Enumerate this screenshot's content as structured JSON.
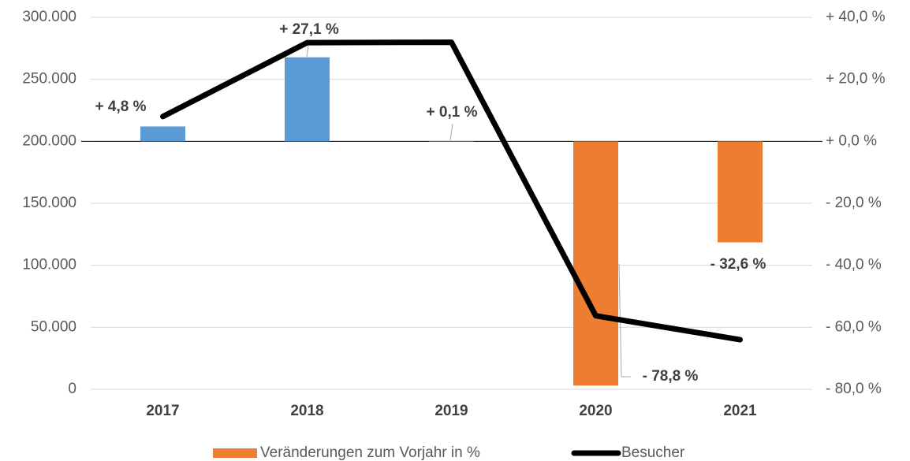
{
  "chart_data": {
    "type": "bar_line",
    "categories": [
      "2017",
      "2018",
      "2019",
      "2020",
      "2021"
    ],
    "series": [
      {
        "name": "Veränderungen zum Vorjahr in %",
        "type": "bar",
        "axis": "y2",
        "color": "#ed7d31",
        "colors": [
          "#5b9bd5",
          "#5b9bd5",
          "#5b9bd5",
          "#ed7d31",
          "#ed7d31"
        ],
        "values": [
          4.8,
          27.1,
          0.1,
          -78.8,
          -32.6
        ],
        "value_labels": [
          "+ 4,8 %",
          "+ 27,1 %",
          "+ 0,1 %",
          "- 78,8 %",
          "- 32,6 %"
        ]
      },
      {
        "name": "Besucher",
        "type": "line",
        "axis": "y",
        "color": "#000000",
        "values": [
          220000,
          279600,
          279900,
          59300,
          40000
        ]
      }
    ],
    "ylim": [
      0,
      300000
    ],
    "yticks": [
      {
        "value": 0,
        "label": "0"
      },
      {
        "value": 50000,
        "label": "50.000"
      },
      {
        "value": 100000,
        "label": "100.000"
      },
      {
        "value": 150000,
        "label": "150.000"
      },
      {
        "value": 200000,
        "label": "200.000"
      },
      {
        "value": 250000,
        "label": "250.000"
      },
      {
        "value": 300000,
        "label": "300.000"
      }
    ],
    "y2lim": [
      -80,
      40
    ],
    "y2ticks": [
      {
        "value": 40,
        "label": "+ 40,0 %"
      },
      {
        "value": 20,
        "label": "+ 20,0 %"
      },
      {
        "value": 0,
        "label": "+ 0,0 %"
      },
      {
        "value": -20,
        "label": "- 20,0 %"
      },
      {
        "value": -40,
        "label": "- 40,0 %"
      },
      {
        "value": -60,
        "label": "- 60,0 %"
      },
      {
        "value": -80,
        "label": "- 80,0 %"
      }
    ],
    "grid": true
  }
}
